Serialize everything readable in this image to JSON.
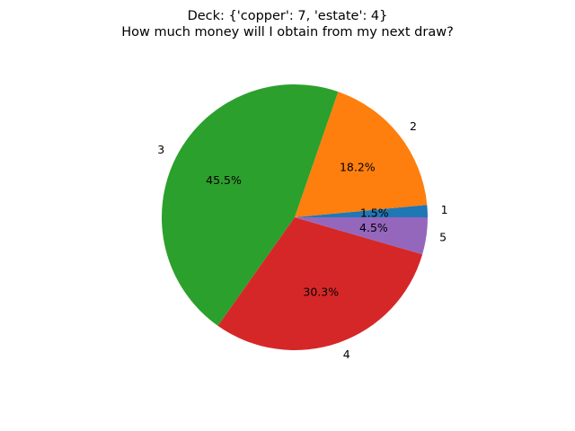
{
  "chart_data": {
    "type": "pie",
    "title_lines": [
      "Deck: {'copper': 7, 'estate': 4}",
      "How much money will I obtain from my next draw?"
    ],
    "categories": [
      "1",
      "2",
      "3",
      "4",
      "5"
    ],
    "values": [
      1.5,
      18.2,
      45.5,
      30.3,
      4.5
    ],
    "percent_labels": [
      "1.5%",
      "18.2%",
      "45.5%",
      "30.3%",
      "4.5%"
    ],
    "colors": [
      "#1f77b4",
      "#ff7f0e",
      "#2ca02c",
      "#d62728",
      "#9467bd"
    ],
    "start_angle_deg": 0,
    "direction": "counterclockwise",
    "legend": "none"
  }
}
